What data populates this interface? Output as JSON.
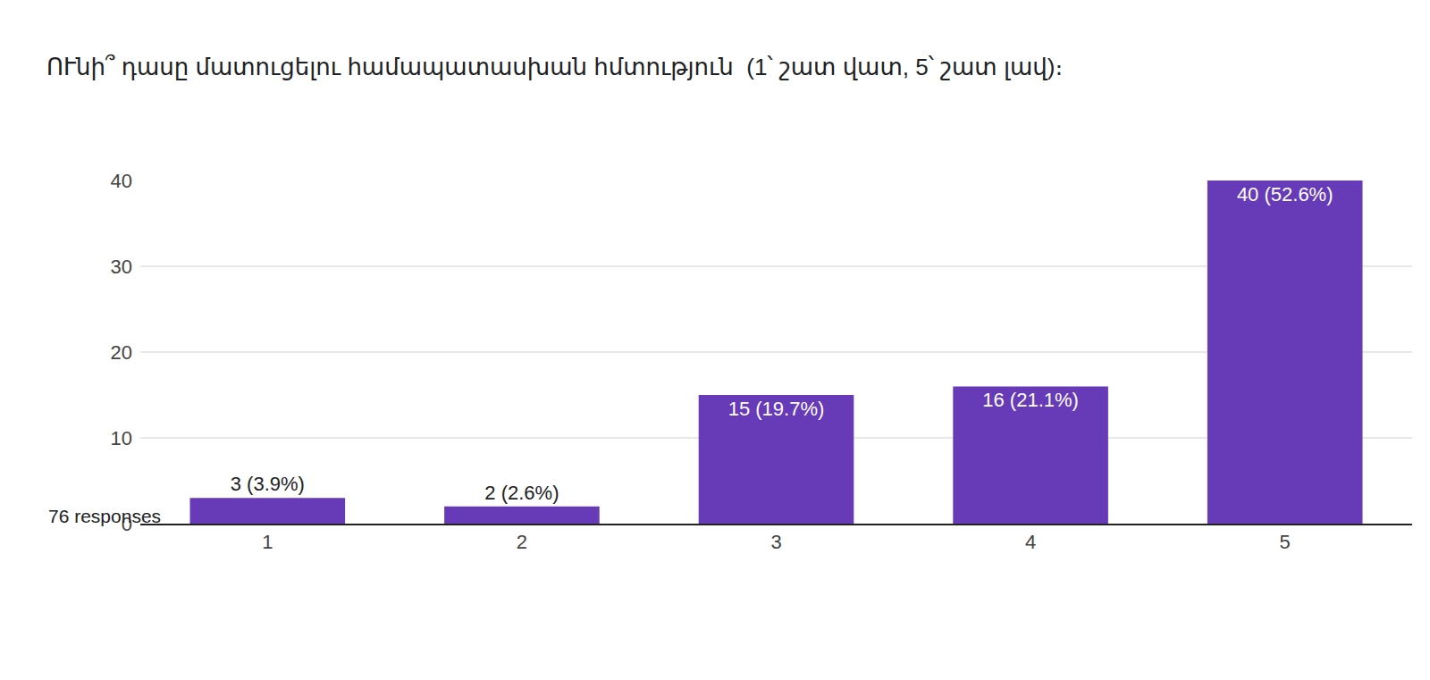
{
  "chart_data": {
    "type": "bar",
    "title": "ՈՒնի՞ դասը մատուցելու համապատասխան հմտություն  (1՝ շատ վատ, 5՝ շատ լավ)։",
    "subtitle": "76 responses",
    "categories": [
      "1",
      "2",
      "3",
      "4",
      "5"
    ],
    "values": [
      3,
      2,
      15,
      16,
      40
    ],
    "value_labels": [
      "3 (3.9%)",
      "2 (2.6%)",
      "15 (19.7%)",
      "16 (21.1%)",
      "40 (52.6%)"
    ],
    "data_labels": true,
    "color": "#673ab7",
    "ylim": [
      0,
      40
    ],
    "yticks": [
      0,
      10,
      20,
      30,
      40
    ],
    "grid": true
  }
}
